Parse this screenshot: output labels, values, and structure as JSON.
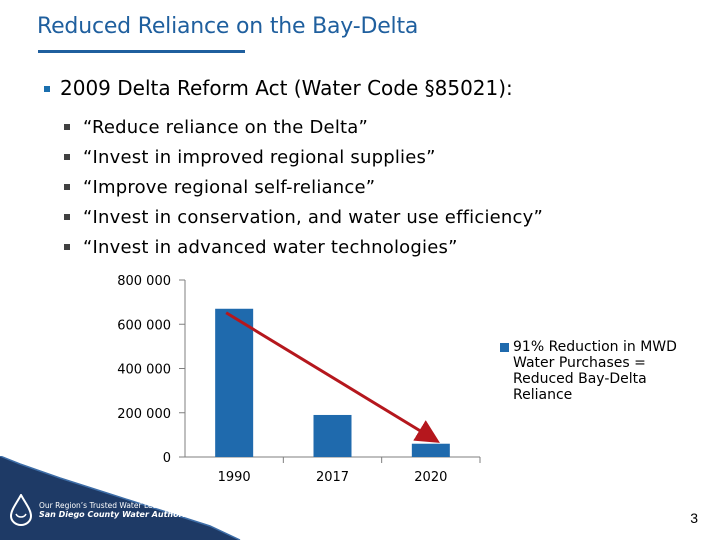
{
  "slide": {
    "title": "Reduced Reliance on the Bay-Delta",
    "main_bullet": "2009 Delta Reform Act (Water Code §85021):",
    "sub_bullets": [
      "“Reduce reliance on the Delta”",
      "“Invest in improved regional supplies”",
      "“Improve regional self-reliance”",
      "“Invest in conservation, and water use efficiency”",
      "“Invest in advanced water technologies”"
    ],
    "page_number": "3",
    "colors": {
      "title": "#1f5f9e",
      "bar": "#1f6aad",
      "arrow": "#b5171d",
      "footer": "#1e3a66"
    }
  },
  "logo": {
    "line1": "Our Region’s Trusted Water Leader",
    "line2": "San Diego County Water Authority",
    "icon": "water-drop-logo-icon"
  },
  "chart_data": {
    "type": "bar",
    "categories": [
      "1990",
      "2017",
      "2020"
    ],
    "values": [
      670000,
      190000,
      60000
    ],
    "ylim": [
      0,
      800000
    ],
    "yticks": [
      "0",
      "200 000",
      "400 000",
      "600 000",
      "800 000"
    ],
    "ytick_values": [
      0,
      200000,
      400000,
      600000,
      800000
    ],
    "grid": false,
    "legend": {
      "label": "91% Reduction in MWD Water Purchases = Reduced Bay-Delta Reliance",
      "position": "right"
    },
    "annotation": "trend-arrow from 1990 to 2020"
  }
}
